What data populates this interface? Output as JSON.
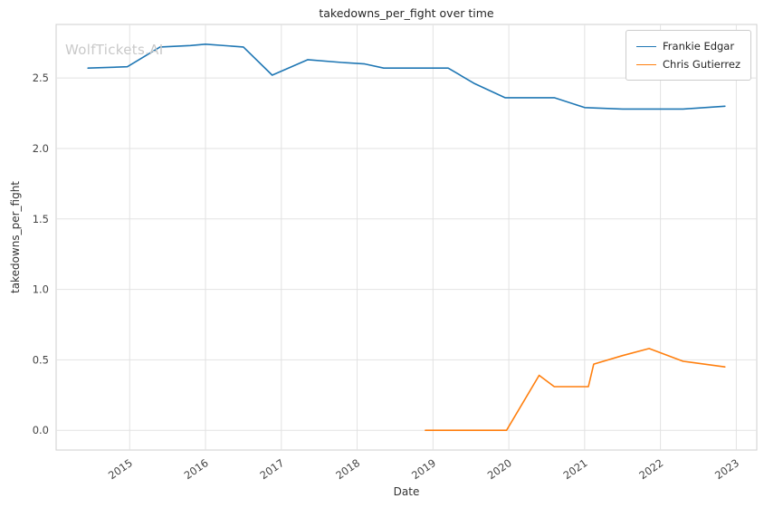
{
  "watermark": "WolfTickets.AI",
  "chart_data": {
    "type": "line",
    "title": "takedowns_per_fight over time",
    "xlabel": "Date",
    "ylabel": "takedowns_per_fight",
    "xlim": [
      2014.03,
      2023.27
    ],
    "ylim": [
      -0.14,
      2.88
    ],
    "xticks": [
      2015,
      2016,
      2017,
      2018,
      2019,
      2020,
      2021,
      2022,
      2023
    ],
    "yticks": [
      0.0,
      0.5,
      1.0,
      1.5,
      2.0,
      2.5
    ],
    "grid": true,
    "legend_position": "upper right",
    "series": [
      {
        "name": "Frankie Edgar",
        "color": "#1f77b4",
        "points": [
          [
            2014.45,
            2.57
          ],
          [
            2014.97,
            2.58
          ],
          [
            2015.4,
            2.72
          ],
          [
            2015.8,
            2.73
          ],
          [
            2016.0,
            2.74
          ],
          [
            2016.5,
            2.72
          ],
          [
            2016.88,
            2.52
          ],
          [
            2017.35,
            2.63
          ],
          [
            2017.8,
            2.61
          ],
          [
            2018.1,
            2.6
          ],
          [
            2018.35,
            2.57
          ],
          [
            2019.2,
            2.57
          ],
          [
            2019.55,
            2.46
          ],
          [
            2019.95,
            2.36
          ],
          [
            2020.6,
            2.36
          ],
          [
            2021.0,
            2.29
          ],
          [
            2021.5,
            2.28
          ],
          [
            2022.3,
            2.28
          ],
          [
            2022.85,
            2.3
          ]
        ]
      },
      {
        "name": "Chris Gutierrez",
        "color": "#ff7f0e",
        "points": [
          [
            2018.9,
            0.0
          ],
          [
            2019.5,
            0.0
          ],
          [
            2019.97,
            0.0
          ],
          [
            2020.4,
            0.39
          ],
          [
            2020.6,
            0.31
          ],
          [
            2021.05,
            0.31
          ],
          [
            2021.12,
            0.47
          ],
          [
            2021.5,
            0.53
          ],
          [
            2021.85,
            0.58
          ],
          [
            2022.3,
            0.49
          ],
          [
            2022.85,
            0.45
          ]
        ]
      }
    ]
  }
}
